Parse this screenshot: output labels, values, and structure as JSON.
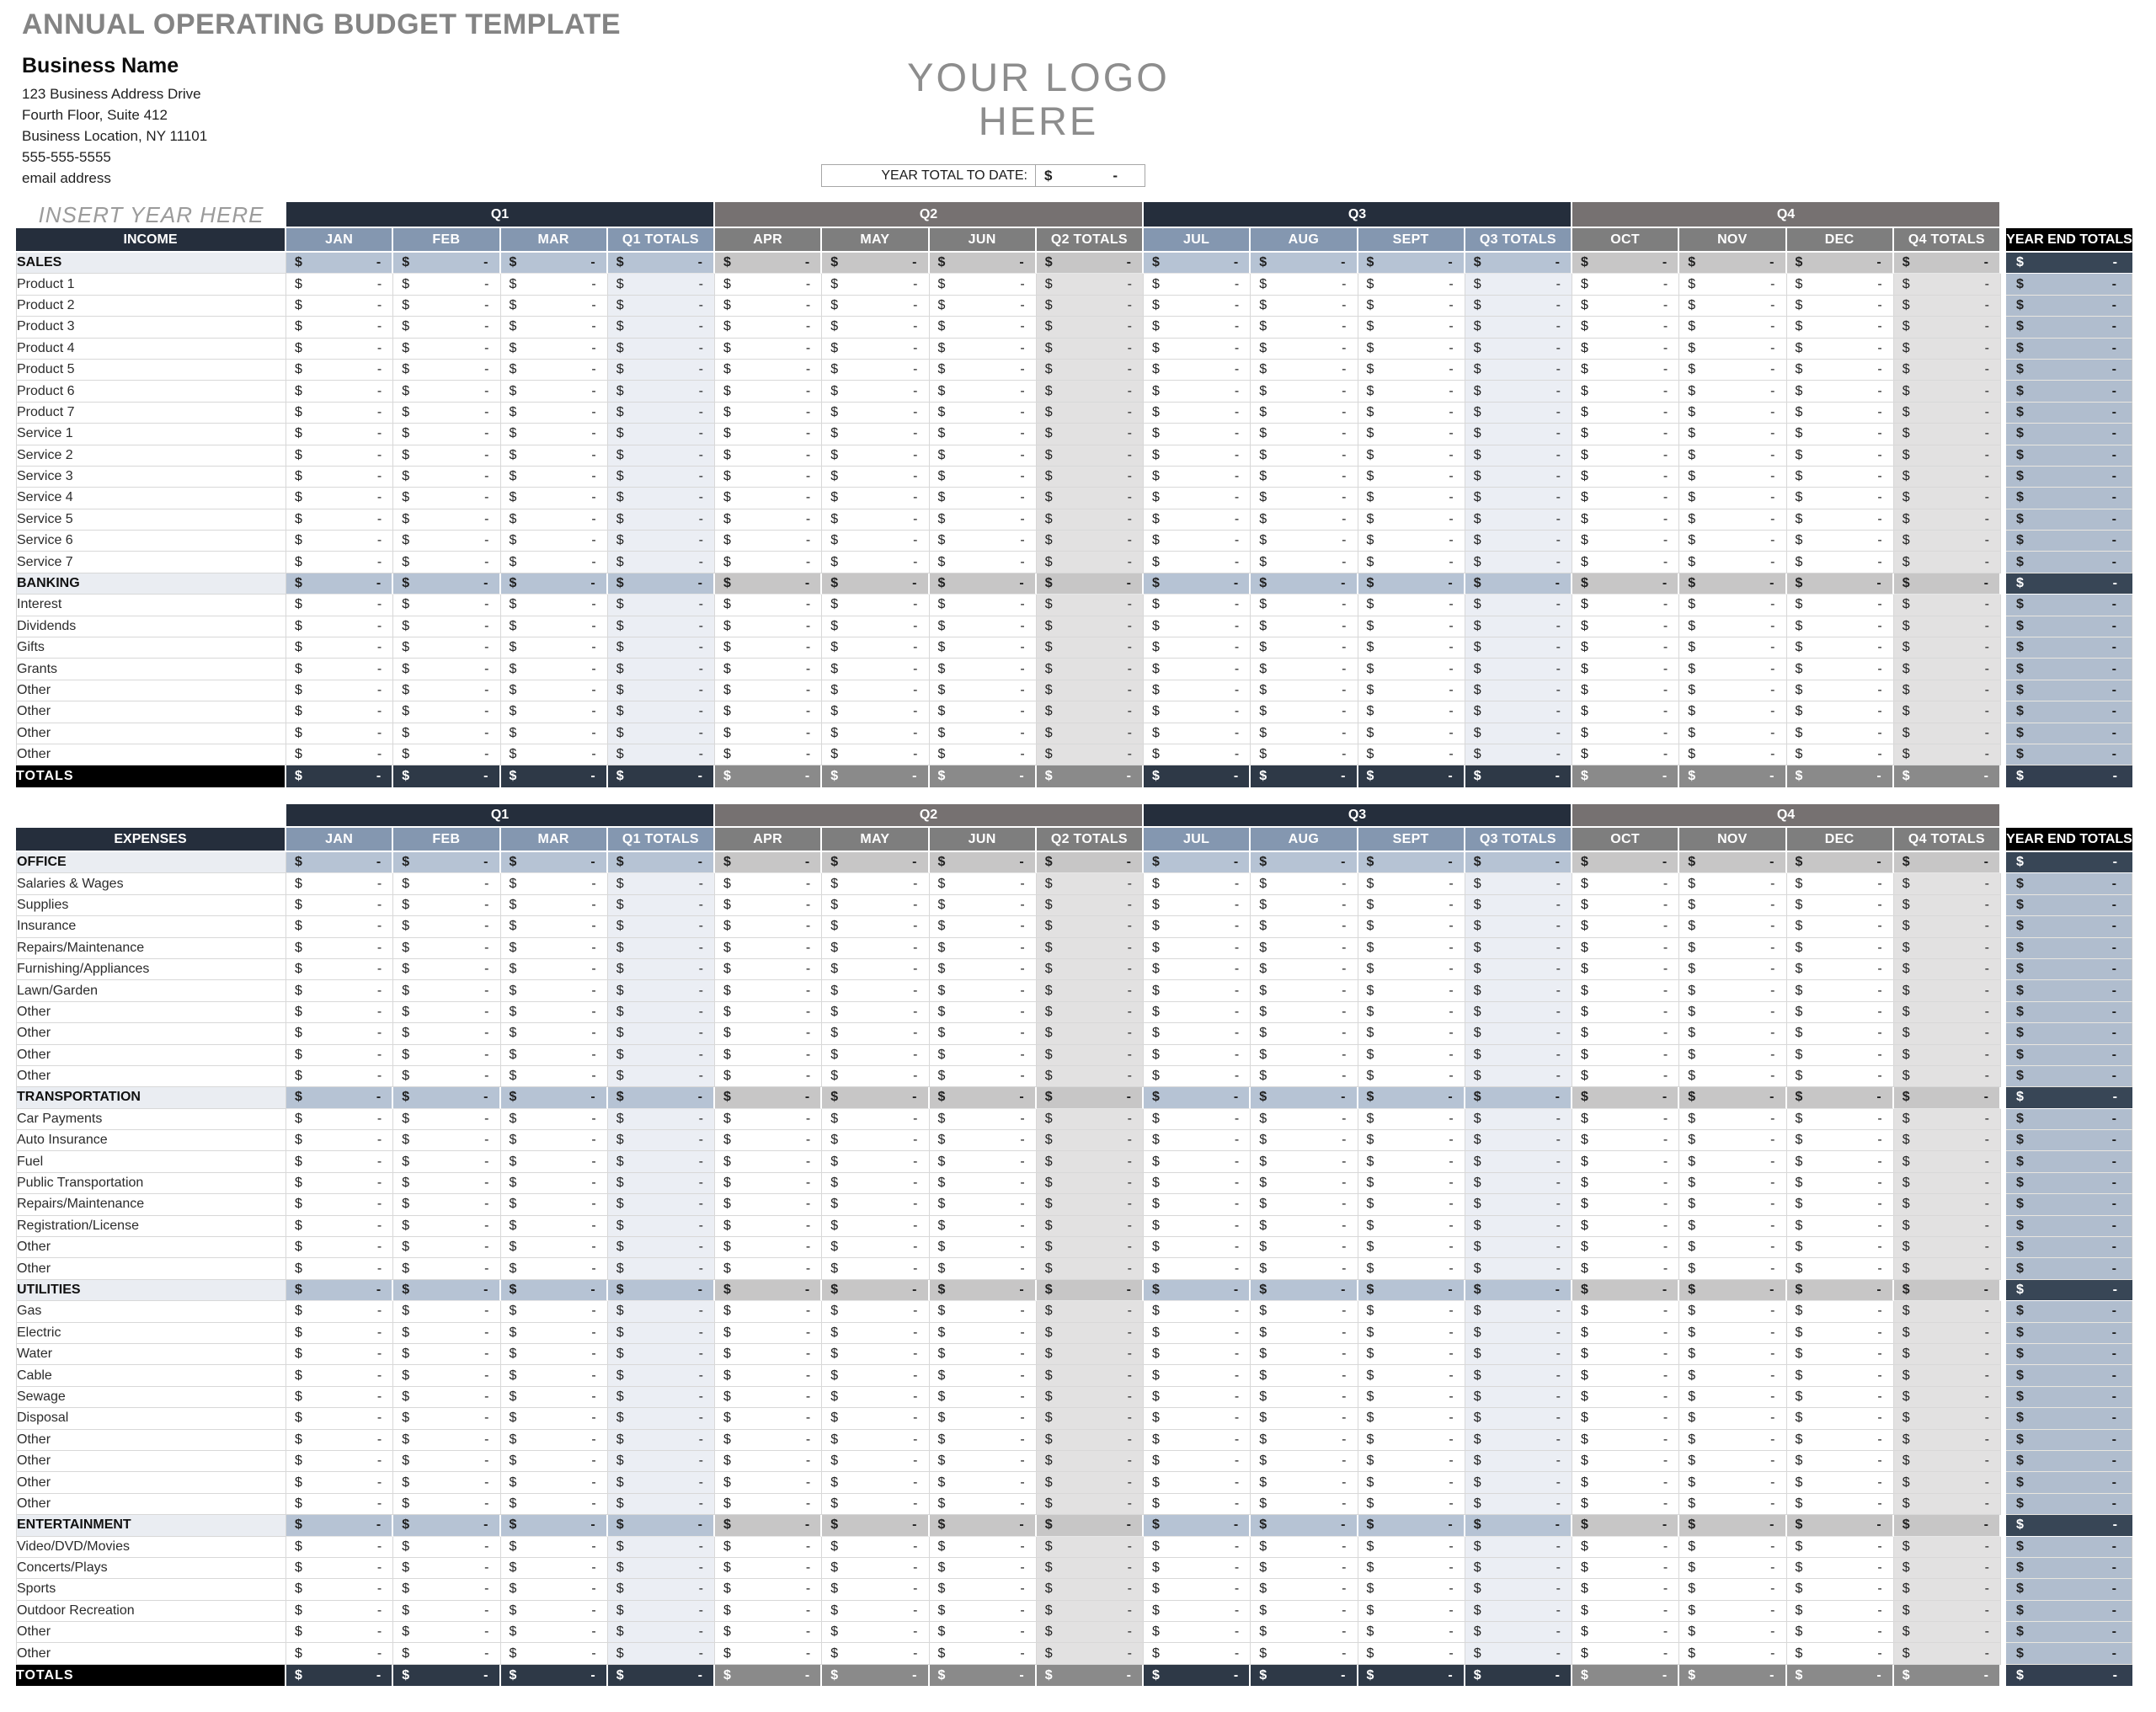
{
  "page_title": "ANNUAL OPERATING BUDGET TEMPLATE",
  "business": {
    "name": "Business Name",
    "lines": [
      "123 Business Address Drive",
      "Fourth Floor, Suite 412",
      "Business Location, NY 11101",
      "555-555-5555",
      "email address"
    ]
  },
  "logo": {
    "line1": "YOUR LOGO",
    "line2": "HERE"
  },
  "year_total": {
    "label": "YEAR TOTAL TO DATE:",
    "currency": "$",
    "value": "-"
  },
  "insert_year": "INSERT YEAR HERE",
  "year_end_header": "YEAR END TOTALS",
  "cell": {
    "currency": "$",
    "empty": "-"
  },
  "quarters": [
    {
      "label": "Q1",
      "months": [
        "JAN",
        "FEB",
        "MAR"
      ],
      "total": "Q1 TOTALS",
      "theme": "blue"
    },
    {
      "label": "Q2",
      "months": [
        "APR",
        "MAY",
        "JUN"
      ],
      "total": "Q2 TOTALS",
      "theme": "gray"
    },
    {
      "label": "Q3",
      "months": [
        "JUL",
        "AUG",
        "SEPT"
      ],
      "total": "Q3 TOTALS",
      "theme": "blue"
    },
    {
      "label": "Q4",
      "months": [
        "OCT",
        "NOV",
        "DEC"
      ],
      "total": "Q4 TOTALS",
      "theme": "gray"
    }
  ],
  "tables": [
    {
      "id": "income",
      "header": "INCOME",
      "show_insert_year": true,
      "totals_label": "TOTALS",
      "sections": [
        {
          "name": "SALES",
          "rows": [
            "Product 1",
            "Product 2",
            "Product 3",
            "Product 4",
            "Product 5",
            "Product 6",
            "Product 7",
            "Service 1",
            "Service 2",
            "Service 3",
            "Service 4",
            "Service 5",
            "Service 6",
            "Service 7"
          ]
        },
        {
          "name": "BANKING",
          "rows": [
            "Interest",
            "Dividends",
            "Gifts",
            "Grants",
            "Other",
            "Other",
            "Other",
            "Other"
          ]
        }
      ]
    },
    {
      "id": "expenses",
      "header": "EXPENSES",
      "show_insert_year": false,
      "totals_label": "TOTALS",
      "sections": [
        {
          "name": "OFFICE",
          "rows": [
            "Salaries & Wages",
            "Supplies",
            "Insurance",
            "Repairs/Maintenance",
            "Furnishing/Appliances",
            "Lawn/Garden",
            "Other",
            "Other",
            "Other",
            "Other"
          ]
        },
        {
          "name": "TRANSPORTATION",
          "rows": [
            "Car Payments",
            "Auto Insurance",
            "Fuel",
            "Public Transportation",
            "Repairs/Maintenance",
            "Registration/License",
            "Other",
            "Other"
          ]
        },
        {
          "name": "UTILITIES",
          "rows": [
            "Gas",
            "Electric",
            "Water",
            "Cable",
            "Sewage",
            "Disposal",
            "Other",
            "Other",
            "Other",
            "Other"
          ]
        },
        {
          "name": "ENTERTAINMENT",
          "rows": [
            "Video/DVD/Movies",
            "Concerts/Plays",
            "Sports",
            "Outdoor Recreation",
            "Other",
            "Other"
          ]
        }
      ]
    }
  ],
  "colors": {
    "dark_navy": "#252E3C",
    "slate": "#333F50",
    "steel_blue_header": "#8497B0",
    "gray_bar": "#767171",
    "gray_header": "#7E7E7E",
    "section_blue": "#B6C3D4",
    "section_gray": "#C7C6C6",
    "section_label_bg": "#EAEDF2",
    "pale_blue_totals": "#EBEEF4",
    "pale_gray_totals": "#E2E1E1",
    "year_end_cell": "#B0BDCE",
    "black": "#000000",
    "title_gray": "#848484"
  }
}
